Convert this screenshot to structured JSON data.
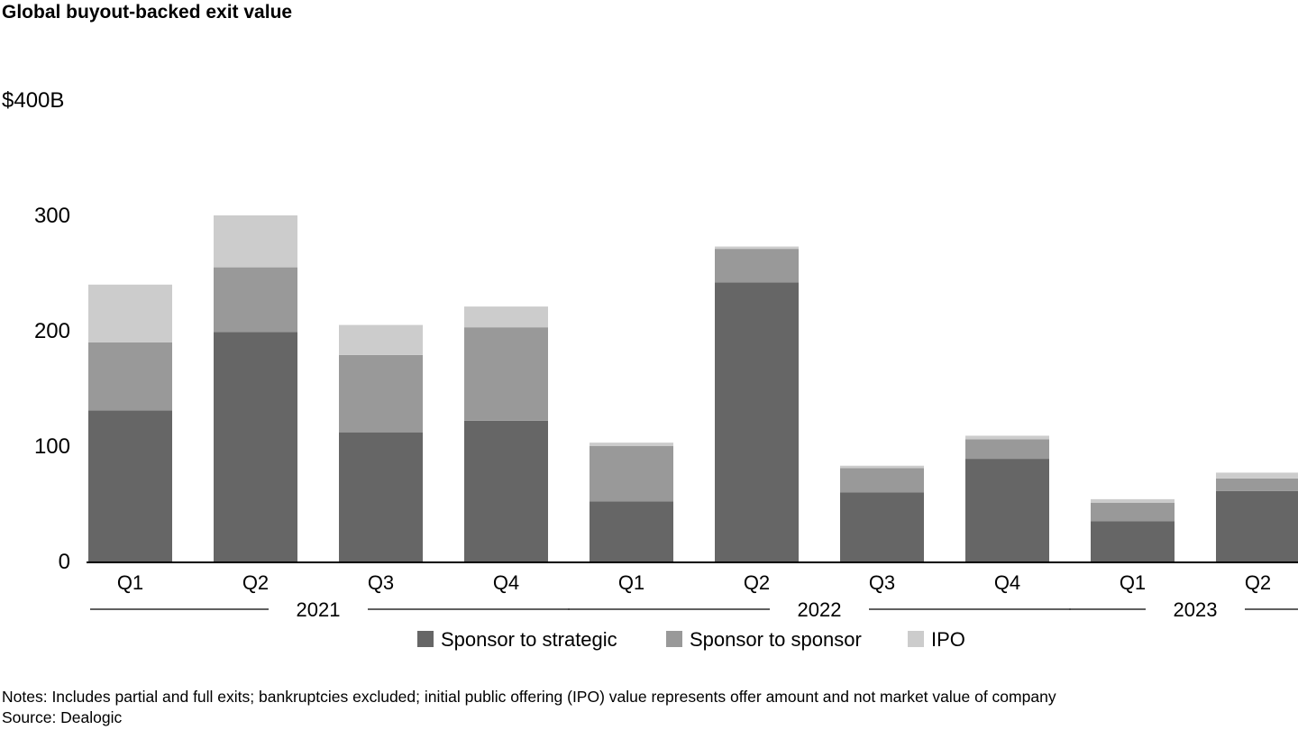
{
  "title": "Global buyout-backed exit value",
  "notes": "Notes: Includes partial and full exits; bankruptcies excluded; initial public offering (IPO) value represents offer amount and not market value of company",
  "source": "Source: Dealogic",
  "chart_data": {
    "type": "bar",
    "stacked": true,
    "title": "Global buyout-backed exit value",
    "xlabel": "",
    "ylabel": "",
    "ylim": [
      0,
      400
    ],
    "yticks": [
      {
        "value": 0,
        "label": "0"
      },
      {
        "value": 100,
        "label": "100"
      },
      {
        "value": 200,
        "label": "200"
      },
      {
        "value": 300,
        "label": "300"
      },
      {
        "value": 400,
        "label": "$400B"
      }
    ],
    "categories": [
      "Q1",
      "Q2",
      "Q3",
      "Q4",
      "Q1",
      "Q2",
      "Q3",
      "Q4",
      "Q1",
      "Q2"
    ],
    "groups": [
      {
        "label": "2021",
        "start": 0,
        "end": 3
      },
      {
        "label": "2022",
        "start": 4,
        "end": 7
      },
      {
        "label": "2023",
        "start": 8,
        "end": 9
      }
    ],
    "series": [
      {
        "name": "Sponsor to strategic",
        "color": "#666666",
        "values": [
          131,
          199,
          112,
          122,
          52,
          242,
          60,
          89,
          35,
          61
        ]
      },
      {
        "name": "Sponsor to sponsor",
        "color": "#999999",
        "values": [
          59,
          56,
          67,
          81,
          48,
          29,
          21,
          17,
          16,
          11
        ]
      },
      {
        "name": "IPO",
        "color": "#cccccc",
        "values": [
          50,
          45,
          26,
          18,
          3,
          2,
          2,
          3,
          3,
          5
        ]
      }
    ],
    "grid": false,
    "legend": "bottom"
  }
}
